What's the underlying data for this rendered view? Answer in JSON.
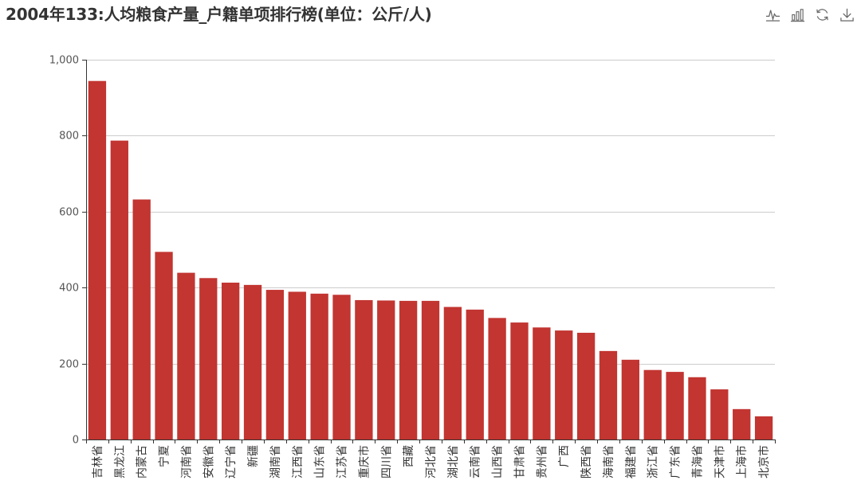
{
  "title": "2004年133:人均粮食产量_户籍单项排行榜(单位：公斤/人)",
  "toolbox": {
    "items": [
      {
        "name": "line-chart-icon",
        "tooltip": "切换为折线图"
      },
      {
        "name": "bar-chart-icon",
        "tooltip": "切换为柱状图"
      },
      {
        "name": "restore-icon",
        "tooltip": "还原"
      },
      {
        "name": "download-icon",
        "tooltip": "保存为图片"
      }
    ],
    "icon_color": "#666666"
  },
  "chart_data": {
    "type": "bar",
    "title": "2004年133:人均粮食产量_户籍单项排行榜(单位：公斤/人)",
    "xlabel": "",
    "ylabel": "",
    "ylim": [
      0,
      1000
    ],
    "yticks": [
      0,
      200,
      400,
      600,
      800,
      1000
    ],
    "ytick_labels": [
      "0",
      "200",
      "400",
      "600",
      "800",
      "1,000"
    ],
    "grid": true,
    "color": "#c23531",
    "categories": [
      "吉林省",
      "黑龙江",
      "内蒙古",
      "宁夏",
      "河南省",
      "安徽省",
      "辽宁省",
      "新疆",
      "湖南省",
      "江西省",
      "山东省",
      "江苏省",
      "重庆市",
      "四川省",
      "西藏",
      "河北省",
      "湖北省",
      "云南省",
      "山西省",
      "甘肃省",
      "贵州省",
      "广西",
      "陕西省",
      "海南省",
      "福建省",
      "浙江省",
      "广东省",
      "青海省",
      "天津市",
      "上海市",
      "北京市"
    ],
    "values": [
      944,
      787,
      632,
      494,
      439,
      425,
      413,
      407,
      394,
      389,
      384,
      381,
      367,
      366,
      365,
      365,
      349,
      342,
      320,
      308,
      295,
      287,
      281,
      233,
      210,
      183,
      178,
      164,
      132,
      80,
      61
    ]
  }
}
